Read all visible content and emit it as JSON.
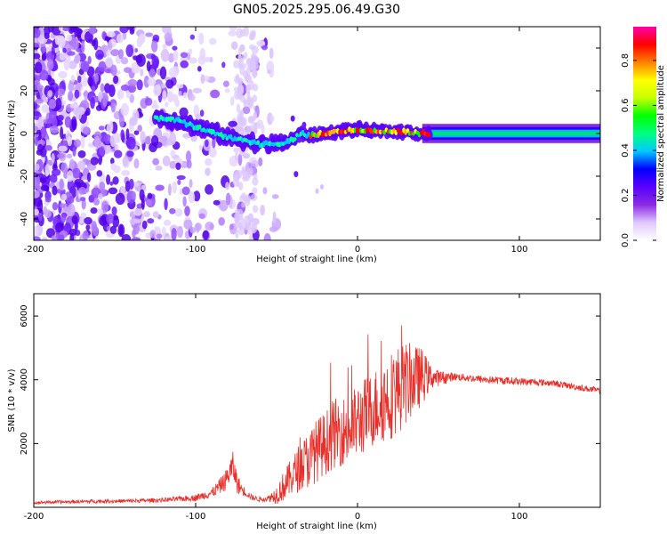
{
  "title": "GN05.2025.295.06.49.G30",
  "chart_data": [
    {
      "id": "spectrogram",
      "type": "heatmap",
      "title": "GN05.2025.295.06.49.G30",
      "xlabel": "Height of straight line (km)",
      "ylabel": "Frequency (Hz)",
      "xlim": [
        -200,
        150
      ],
      "ylim": [
        -50,
        50
      ],
      "xticks": [
        -200,
        -100,
        0,
        100
      ],
      "xtick_labels": [
        "-200",
        "-100",
        "0",
        "100"
      ],
      "yticks": [
        -40,
        -20,
        0,
        20,
        40
      ],
      "ytick_labels": [
        "-40",
        "-20",
        "0",
        "20",
        "40"
      ],
      "colorbar": {
        "label": "Normalized spectral amplitude",
        "range": [
          0,
          0.95
        ],
        "ticks": [
          0,
          0.2,
          0.4,
          0.6,
          0.8
        ],
        "tick_labels": [
          "0.0",
          "0.2",
          "0.4",
          "0.6",
          "0.8"
        ],
        "colormap": [
          "#ffffff",
          "#e0c8ff",
          "#8a2be2",
          "#5a00ff",
          "#0000ff",
          "#00c8ff",
          "#00ff7f",
          "#00ff00",
          "#c8ff00",
          "#ffff00",
          "#ff8000",
          "#ff0000",
          "#ff00aa"
        ]
      },
      "ridge": {
        "description_points_x": [
          -120,
          -110,
          -100,
          -90,
          -80,
          -70,
          -60,
          -50,
          -40,
          -35,
          -30,
          -20,
          -10,
          0,
          10,
          20,
          30,
          40,
          50,
          60,
          80,
          100,
          120,
          150
        ],
        "frequency_hz": [
          7,
          6,
          3,
          1,
          -2,
          -3,
          -5,
          -5,
          -3,
          0,
          -1,
          0,
          1,
          2,
          1,
          1,
          1,
          0,
          0,
          0,
          0,
          0,
          0,
          0
        ]
      },
      "noise_region_x": [
        -200,
        -60
      ],
      "steady_band_x": [
        40,
        150
      ],
      "steady_band_hz": [
        -3,
        3
      ]
    },
    {
      "id": "snr",
      "type": "line",
      "xlabel": "Height of straight line (km)",
      "ylabel": "SNR (10 * v/v)",
      "xlim": [
        -200,
        150
      ],
      "ylim": [
        0,
        6700
      ],
      "xticks": [
        -200,
        -100,
        0,
        100
      ],
      "xtick_labels": [
        "-200",
        "-100",
        "0",
        "100"
      ],
      "yticks": [
        2000,
        4000,
        6000
      ],
      "ytick_labels": [
        "2000",
        "4000",
        "6000"
      ],
      "line_color": "#e8302a",
      "series": [
        {
          "name": "SNR",
          "x": [
            -200,
            -180,
            -160,
            -140,
            -120,
            -110,
            -100,
            -90,
            -82,
            -77,
            -74,
            -70,
            -65,
            -60,
            -55,
            -50,
            -45,
            -40,
            -35,
            -30,
            -25,
            -20,
            -15,
            -10,
            -5,
            0,
            5,
            10,
            15,
            20,
            25,
            30,
            35,
            40,
            45,
            50,
            60,
            80,
            100,
            120,
            150
          ],
          "y": [
            150,
            170,
            190,
            200,
            230,
            260,
            300,
            450,
            800,
            1300,
            700,
            500,
            300,
            250,
            280,
            400,
            700,
            1000,
            1300,
            1500,
            1800,
            2000,
            2300,
            2400,
            2400,
            2700,
            2900,
            3100,
            3300,
            3500,
            3700,
            3900,
            4000,
            4100,
            4100,
            4050,
            4100,
            4000,
            3950,
            3900,
            3650
          ],
          "spread": [
            50,
            50,
            60,
            60,
            70,
            80,
            100,
            150,
            300,
            450,
            300,
            150,
            80,
            80,
            100,
            300,
            500,
            600,
            800,
            900,
            1000,
            1000,
            1100,
            1100,
            1100,
            1200,
            1200,
            1200,
            1300,
            1400,
            1400,
            1300,
            1100,
            900,
            400,
            250,
            120,
            120,
            120,
            100,
            100
          ]
        }
      ]
    }
  ]
}
